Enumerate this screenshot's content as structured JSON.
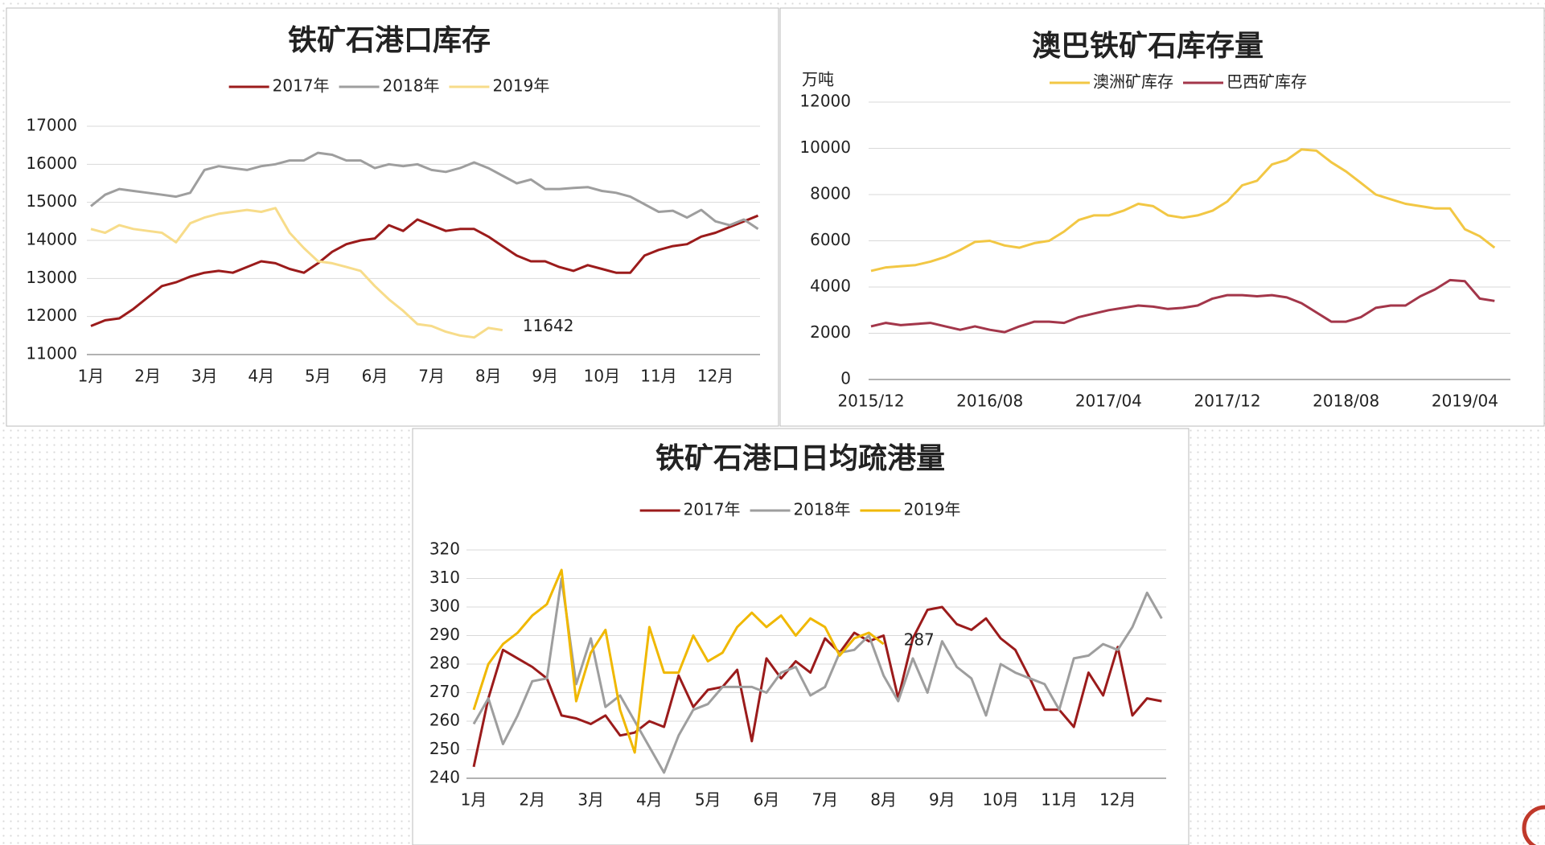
{
  "chart_data": [
    {
      "type": "line",
      "title": "铁矿石港口库存",
      "annotation": "11642",
      "categories": [
        "1月",
        null,
        null,
        null,
        "2月",
        null,
        null,
        null,
        "3月",
        null,
        null,
        null,
        "4月",
        null,
        null,
        null,
        "5月",
        null,
        null,
        null,
        "6月",
        null,
        null,
        null,
        "7月",
        null,
        null,
        null,
        "8月",
        null,
        null,
        null,
        "9月",
        null,
        null,
        null,
        "10月",
        null,
        null,
        null,
        "11月",
        null,
        null,
        null,
        "12月",
        null,
        null,
        null
      ],
      "ylim": [
        11000,
        17000
      ],
      "yticks": [
        11000,
        12000,
        13000,
        14000,
        15000,
        16000,
        17000
      ],
      "grid": true,
      "series": [
        {
          "name": "2017年",
          "color": "#9b1b1b",
          "values": [
            11750,
            11900,
            11950,
            12200,
            12500,
            12800,
            12900,
            13050,
            13150,
            13200,
            13150,
            13300,
            13450,
            13400,
            13250,
            13150,
            13400,
            13700,
            13900,
            14000,
            14050,
            14400,
            14250,
            14550,
            14400,
            14250,
            14300,
            14300,
            14100,
            13850,
            13600,
            13450,
            13450,
            13300,
            13200,
            13350,
            13250,
            13150,
            13150,
            13600,
            13750,
            13850,
            13900,
            14100,
            14200,
            14350,
            14500,
            14650
          ]
        },
        {
          "name": "2018年",
          "color": "#9e9e9e",
          "values": [
            14900,
            15200,
            15350,
            15300,
            15250,
            15200,
            15150,
            15250,
            15850,
            15950,
            15900,
            15850,
            15950,
            16000,
            16100,
            16100,
            16300,
            16250,
            16100,
            16100,
            15900,
            16000,
            15950,
            16000,
            15850,
            15800,
            15900,
            16050,
            15900,
            15700,
            15500,
            15600,
            15350,
            15350,
            15380,
            15400,
            15300,
            15250,
            15150,
            14950,
            14750,
            14780,
            14600,
            14800,
            14500,
            14400,
            14550,
            14300
          ]
        },
        {
          "name": "2019年",
          "color": "#f7dc8a",
          "values": [
            14300,
            14200,
            14400,
            14300,
            14250,
            14200,
            13950,
            14450,
            14600,
            14700,
            14750,
            14800,
            14750,
            14850,
            14200,
            13800,
            13450,
            13400,
            13300,
            13200,
            12800,
            12450,
            12150,
            11800,
            11750,
            11600,
            11500,
            11450,
            11700,
            11642,
            null,
            null,
            null,
            null,
            null,
            null,
            null,
            null,
            null,
            null,
            null,
            null,
            null,
            null,
            null,
            null,
            null,
            null
          ]
        }
      ]
    },
    {
      "type": "line",
      "title": "澳巴铁矿石库存量",
      "y_label": "万吨",
      "categories": [
        "2015/12",
        null,
        null,
        null,
        null,
        null,
        null,
        null,
        "2016/08",
        null,
        null,
        null,
        null,
        null,
        null,
        null,
        "2017/04",
        null,
        null,
        null,
        null,
        null,
        null,
        null,
        "2017/12",
        null,
        null,
        null,
        null,
        null,
        null,
        null,
        "2018/08",
        null,
        null,
        null,
        null,
        null,
        null,
        null,
        "2019/04",
        null,
        null
      ],
      "ylim": [
        0,
        12000
      ],
      "yticks": [
        0,
        2000,
        4000,
        6000,
        8000,
        10000,
        12000
      ],
      "grid": true,
      "series": [
        {
          "name": "澳洲矿库存",
          "color": "#f2c744",
          "values": [
            4700,
            4850,
            4900,
            4950,
            5100,
            5300,
            5600,
            5950,
            6000,
            5800,
            5700,
            5900,
            6000,
            6400,
            6900,
            7100,
            7100,
            7300,
            7600,
            7500,
            7100,
            7000,
            7100,
            7300,
            7700,
            8400,
            8600,
            9300,
            9500,
            9950,
            9900,
            9400,
            9000,
            8500,
            8000,
            7800,
            7600,
            7500,
            7400,
            7400,
            6500,
            6200,
            5700
          ]
        },
        {
          "name": "巴西矿库存",
          "color": "#a3364a",
          "values": [
            2300,
            2450,
            2350,
            2400,
            2450,
            2300,
            2150,
            2300,
            2150,
            2050,
            2300,
            2500,
            2500,
            2450,
            2700,
            2850,
            3000,
            3100,
            3200,
            3150,
            3050,
            3100,
            3200,
            3500,
            3650,
            3650,
            3600,
            3650,
            3550,
            3300,
            2900,
            2500,
            2500,
            2700,
            3100,
            3200,
            3200,
            3600,
            3900,
            4300,
            4250,
            3500,
            3400
          ]
        }
      ]
    },
    {
      "type": "line",
      "title": "铁矿石港口日均疏港量",
      "annotation": "287",
      "categories": [
        "1月",
        null,
        null,
        null,
        "2月",
        null,
        null,
        null,
        "3月",
        null,
        null,
        null,
        "4月",
        null,
        null,
        null,
        "5月",
        null,
        null,
        null,
        "6月",
        null,
        null,
        null,
        "7月",
        null,
        null,
        null,
        "8月",
        null,
        null,
        null,
        "9月",
        null,
        null,
        null,
        "10月",
        null,
        null,
        null,
        "11月",
        null,
        null,
        null,
        "12月",
        null,
        null,
        null
      ],
      "ylim": [
        240,
        320
      ],
      "yticks": [
        240,
        250,
        260,
        270,
        280,
        290,
        300,
        310,
        320
      ],
      "grid": true,
      "series": [
        {
          "name": "2017年",
          "color": "#9b1b1b",
          "values": [
            244,
            268,
            285,
            282,
            279,
            275,
            262,
            261,
            259,
            262,
            255,
            256,
            260,
            258,
            276,
            265,
            271,
            272,
            278,
            253,
            282,
            275,
            281,
            277,
            289,
            284,
            291,
            288,
            290,
            268,
            289,
            299,
            300,
            294,
            292,
            296,
            289,
            285,
            275,
            264,
            264,
            258,
            277,
            269,
            286,
            262,
            268,
            267
          ]
        },
        {
          "name": "2018年",
          "color": "#9e9e9e",
          "values": [
            259,
            268,
            252,
            262,
            274,
            275,
            310,
            273,
            289,
            265,
            269,
            260,
            251,
            242,
            255,
            264,
            266,
            272,
            272,
            272,
            270,
            277,
            279,
            269,
            272,
            284,
            285,
            290,
            276,
            267,
            282,
            270,
            288,
            279,
            275,
            262,
            280,
            277,
            275,
            273,
            264,
            282,
            283,
            287,
            285,
            293,
            305,
            296
          ]
        },
        {
          "name": "2019年",
          "color": "#f0b800",
          "values": [
            264,
            280,
            287,
            291,
            297,
            301,
            313,
            267,
            284,
            292,
            264,
            249,
            293,
            277,
            277,
            290,
            281,
            284,
            293,
            298,
            293,
            297,
            290,
            296,
            293,
            283,
            289,
            291,
            287,
            null,
            null,
            null,
            null,
            null,
            null,
            null,
            null,
            null,
            null,
            null,
            null,
            null,
            null,
            null,
            null,
            null,
            null,
            null
          ]
        }
      ]
    }
  ]
}
